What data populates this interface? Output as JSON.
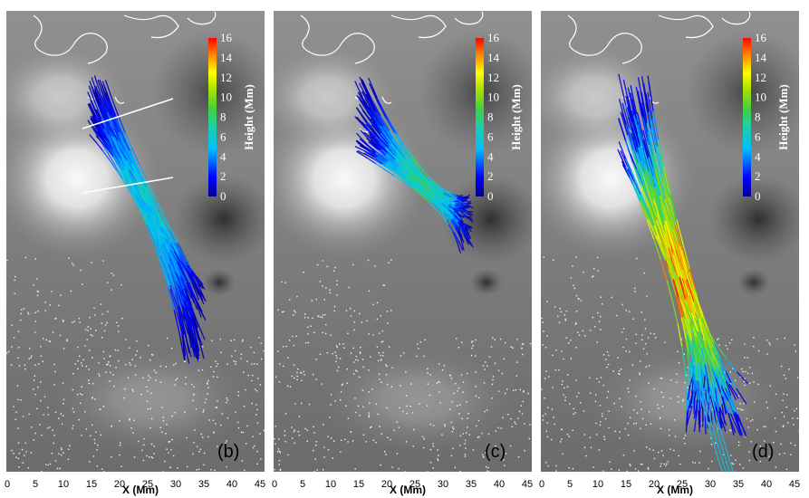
{
  "panels": [
    {
      "label": "(b)"
    },
    {
      "label": "(c)"
    },
    {
      "label": "(d)"
    }
  ],
  "x_axis": {
    "label": "X (Mm)",
    "ticks": [
      "0",
      "5",
      "10",
      "15",
      "20",
      "25",
      "30",
      "35",
      "40",
      "45"
    ]
  },
  "colorbar": {
    "label": "Height (Mm)",
    "ticks": [
      "16",
      "14",
      "12",
      "10",
      "8",
      "6",
      "4",
      "2",
      "0"
    ]
  },
  "colors": {
    "background_gray": "#7c7c7c",
    "contour": "#ffffff",
    "colormap": [
      "#00008f",
      "#0000ff",
      "#00bfff",
      "#30d070",
      "#80e020",
      "#ffff00",
      "#ff8000",
      "#ff0000"
    ]
  }
}
